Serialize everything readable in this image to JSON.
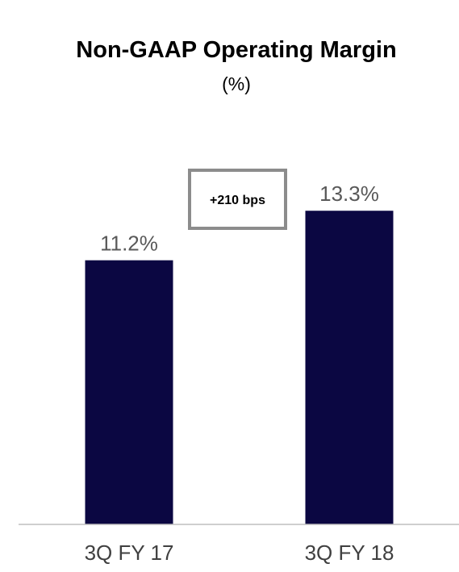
{
  "chart_data": {
    "type": "bar",
    "title": "Non-GAAP Operating Margin",
    "subtitle": "(%)",
    "categories": [
      "3Q FY 17",
      "3Q FY 18"
    ],
    "values": [
      11.2,
      13.3
    ],
    "data_labels": [
      "11.2%",
      "13.3%"
    ],
    "ylim": [
      0,
      15.6
    ],
    "grid": false,
    "legend": "none",
    "annotations": [
      "+210 bps"
    ],
    "colors": {
      "bar": "#0b0742",
      "axis_line": "#bfbfbf",
      "annotation_border": "#8c8c8c",
      "data_label": "#595959",
      "tick_label": "#404040"
    }
  }
}
